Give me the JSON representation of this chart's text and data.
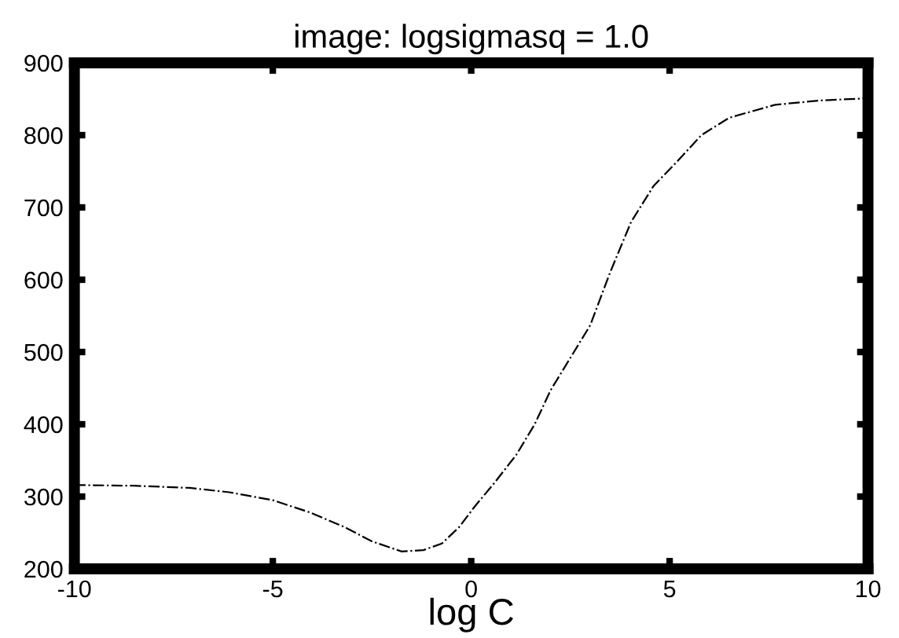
{
  "chart_data": {
    "type": "line",
    "title": "image: logsigmasq = 1.0",
    "xlabel": "log C",
    "series": [
      {
        "color": "#000000",
        "line_style": "dashdot",
        "x": [
          -10,
          -8.5,
          -7.1,
          -6.1,
          -5,
          -4.06,
          -3.2,
          -2.5,
          -1.75,
          -1.2,
          -0.74,
          -0.3,
          0.1,
          0.6,
          1.14,
          1.6,
          2.0,
          2.5,
          3.0,
          3.5,
          4.03,
          4.6,
          5.2,
          5.8,
          6.5,
          7.66,
          8.8,
          10
        ],
        "values": [
          316,
          315,
          312,
          306,
          295,
          278,
          258,
          238,
          224,
          226,
          235,
          258,
          287,
          320,
          358,
          400,
          447,
          492,
          537,
          610,
          680,
          730,
          764,
          800,
          824,
          842,
          848,
          851
        ]
      }
    ],
    "xlim": [
      -10,
      10
    ],
    "ylim": [
      200,
      900
    ],
    "xticks": [
      -10,
      -5,
      0,
      5,
      10
    ],
    "yticks": [
      200,
      300,
      400,
      500,
      600,
      700,
      800,
      900
    ],
    "grid": false
  }
}
